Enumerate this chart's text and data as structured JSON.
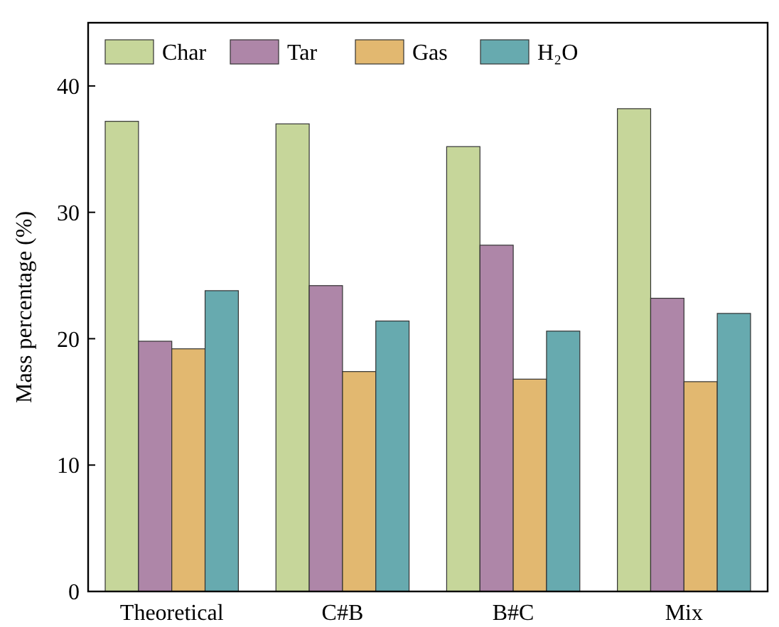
{
  "chart_data": {
    "type": "bar",
    "ylabel": "Mass percentage (%)",
    "categories": [
      "Theoretical",
      "C#B",
      "B#C",
      "Mix"
    ],
    "series": [
      {
        "name": "Char",
        "color": "#c6d69a",
        "values": [
          37.2,
          37.0,
          35.2,
          38.2
        ]
      },
      {
        "name": "Tar",
        "color": "#ae86a8",
        "values": [
          19.8,
          24.2,
          27.4,
          23.2
        ]
      },
      {
        "name": "Gas",
        "color": "#e2b870",
        "values": [
          19.2,
          17.4,
          16.8,
          16.6
        ]
      },
      {
        "name": "H₂O",
        "color": "#67aaaf",
        "values": [
          23.8,
          21.4,
          20.6,
          22.0
        ]
      }
    ],
    "ylim": [
      0,
      45
    ],
    "yticks": [
      0,
      10,
      20,
      30,
      40
    ],
    "grid": false,
    "legend": "top left"
  }
}
